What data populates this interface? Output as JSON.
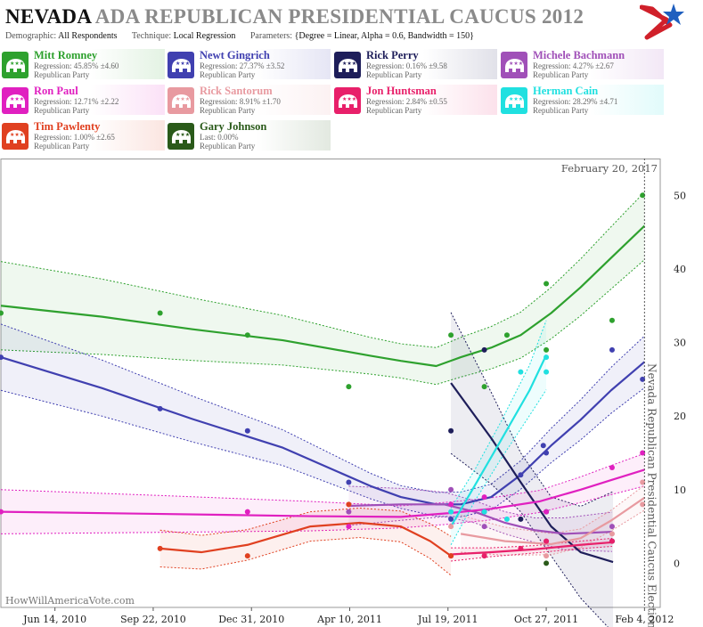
{
  "header": {
    "title_state": "NEVADA",
    "title_rest": "ADA REPUBLICAN PRESIDENTIAL CAUCUS 2012",
    "params": [
      {
        "label": "Demographic:",
        "value": "All Respondents"
      },
      {
        "label": "Technique:",
        "value": "Local Regression"
      },
      {
        "label": "Parameters:",
        "value": "{Degree = Linear, Alpha = 0.6, Bandwidth = 150}"
      }
    ],
    "logo_colors": {
      "red": "#d0202a",
      "blue": "#1f5fbf"
    }
  },
  "legend": {
    "candidates": [
      {
        "name": "Mitt Romney",
        "stat": "Regression: 45.85% ±4.60",
        "party": "Republican Party",
        "color": "#2ea12e",
        "icon": "elephant-icon"
      },
      {
        "name": "Newt Gingrich",
        "stat": "Regression: 27.37% ±3.52",
        "party": "Republican Party",
        "color": "#4040b0",
        "icon": "elephant-icon"
      },
      {
        "name": "Rick Perry",
        "stat": "Regression: 0.16% ±9.58",
        "party": "Republican Party",
        "color": "#1e1e5a",
        "icon": "elephant-icon"
      },
      {
        "name": "Michele Bachmann",
        "stat": "Regression: 4.27% ±2.67",
        "party": "Republican Party",
        "color": "#a050b8",
        "icon": "elephant-icon"
      },
      {
        "name": "Ron Paul",
        "stat": "Regression: 12.71% ±2.22",
        "party": "Republican Party",
        "color": "#e020c0",
        "icon": "elephant-icon"
      },
      {
        "name": "Rick Santorum",
        "stat": "Regression: 8.91% ±1.70",
        "party": "Republican Party",
        "color": "#e89aa0",
        "icon": "elephant-icon"
      },
      {
        "name": "Jon Huntsman",
        "stat": "Regression: 2.84% ±0.55",
        "party": "Republican Party",
        "color": "#e8206a",
        "icon": "elephant-icon"
      },
      {
        "name": "Herman Cain",
        "stat": "Regression: 28.29% ±4.71",
        "party": "Republican Party",
        "color": "#20e0e0",
        "icon": "elephant-icon"
      },
      {
        "name": "Tim Pawlenty",
        "stat": "Regression: 1.00% ±2.65",
        "party": "Republican Party",
        "color": "#e04020",
        "icon": "elephant-icon"
      },
      {
        "name": "Gary Johnson",
        "stat": "Last: 0.00%",
        "party": "Republican Party",
        "color": "#2a5a1a",
        "icon": "elephant-icon"
      }
    ]
  },
  "chart_data": {
    "type": "line",
    "x_is_date": true,
    "xlim": [
      "2010-04-20",
      "2012-02-20"
    ],
    "ylim": [
      -6,
      55
    ],
    "x_ticks": [
      {
        "date": "2010-06-14",
        "label": "Jun 14, 2010"
      },
      {
        "date": "2010-09-22",
        "label": "Sep 22, 2010"
      },
      {
        "date": "2010-12-31",
        "label": "Dec 31, 2010"
      },
      {
        "date": "2011-04-10",
        "label": "Apr 10, 2011"
      },
      {
        "date": "2011-07-19",
        "label": "Jul 19, 2011"
      },
      {
        "date": "2011-10-27",
        "label": "Oct 27, 2011"
      },
      {
        "date": "2012-02-04",
        "label": "Feb 4, 2012"
      }
    ],
    "y_ticks": [
      0,
      10,
      20,
      30,
      40,
      50
    ],
    "date_stamp": "February 20, 2017",
    "event_date": "2012-02-04",
    "event_label": "Nevada Republican Presidential Caucus Election",
    "watermark": "HowWillAmericaVote.com",
    "grid": false,
    "series": [
      {
        "name": "Mitt Romney",
        "color": "#2ea12e",
        "points": [
          [
            "2010-04-20",
            34
          ],
          [
            "2010-09-29",
            34
          ],
          [
            "2010-12-27",
            31
          ],
          [
            "2011-04-09",
            24
          ],
          [
            "2011-07-22",
            31
          ],
          [
            "2011-08-25",
            24
          ],
          [
            "2011-09-17",
            31
          ],
          [
            "2011-10-27",
            38
          ],
          [
            "2011-10-27",
            29
          ],
          [
            "2012-01-02",
            33
          ],
          [
            "2012-02-02",
            50
          ]
        ],
        "fit": [
          [
            "2010-04-20",
            35
          ],
          [
            "2010-08-01",
            33.5
          ],
          [
            "2010-11-01",
            31.8
          ],
          [
            "2011-02-01",
            30.3
          ],
          [
            "2011-05-01",
            28.2
          ],
          [
            "2011-06-01",
            27.5
          ],
          [
            "2011-07-07",
            26.8
          ],
          [
            "2011-08-01",
            28
          ],
          [
            "2011-09-01",
            29.3
          ],
          [
            "2011-10-01",
            31
          ],
          [
            "2011-11-01",
            34
          ],
          [
            "2011-12-01",
            37.5
          ],
          [
            "2012-01-01",
            41.5
          ],
          [
            "2012-02-04",
            45.85
          ]
        ],
        "band": [
          6,
          2.2,
          3,
          4.6
        ]
      },
      {
        "name": "Newt Gingrich",
        "color": "#4040b0",
        "points": [
          [
            "2010-04-20",
            28
          ],
          [
            "2010-09-29",
            21
          ],
          [
            "2010-12-27",
            18
          ],
          [
            "2011-04-09",
            11
          ],
          [
            "2011-07-22",
            6
          ],
          [
            "2011-08-25",
            7
          ],
          [
            "2011-10-01",
            12
          ],
          [
            "2011-10-27",
            15
          ],
          [
            "2011-10-24",
            16
          ],
          [
            "2012-01-02",
            29
          ],
          [
            "2012-02-02",
            25
          ]
        ],
        "fit": [
          [
            "2010-04-20",
            28
          ],
          [
            "2010-08-01",
            23.8
          ],
          [
            "2010-11-01",
            19.6
          ],
          [
            "2011-02-01",
            15.7
          ],
          [
            "2011-05-01",
            10.5
          ],
          [
            "2011-06-01",
            9
          ],
          [
            "2011-07-07",
            8
          ],
          [
            "2011-08-01",
            8
          ],
          [
            "2011-09-01",
            9
          ],
          [
            "2011-10-01",
            12
          ],
          [
            "2011-11-01",
            16
          ],
          [
            "2011-12-01",
            19.5
          ],
          [
            "2012-01-01",
            23.5
          ],
          [
            "2012-02-04",
            27.37
          ]
        ],
        "band": [
          4.5,
          1.5,
          1.8,
          3.52
        ]
      },
      {
        "name": "Rick Perry",
        "color": "#1e1e5a",
        "points": [
          [
            "2011-07-22",
            18
          ],
          [
            "2011-08-25",
            29
          ],
          [
            "2011-10-01",
            6
          ],
          [
            "2011-10-27",
            7
          ],
          [
            "2012-01-02",
            3
          ]
        ],
        "fit": [
          [
            "2011-07-22",
            24.5
          ],
          [
            "2011-09-01",
            17
          ],
          [
            "2011-10-01",
            11
          ],
          [
            "2011-11-01",
            5
          ],
          [
            "2011-12-01",
            1.5
          ],
          [
            "2012-01-03",
            0.16
          ]
        ],
        "band": [
          9.58,
          4,
          4,
          9.58
        ]
      },
      {
        "name": "Michele Bachmann",
        "color": "#a050b8",
        "points": [
          [
            "2011-04-09",
            7
          ],
          [
            "2011-07-22",
            10
          ],
          [
            "2011-08-25",
            5
          ],
          [
            "2011-10-27",
            3
          ],
          [
            "2012-01-02",
            5
          ]
        ],
        "fit": [
          [
            "2011-04-09",
            7.8
          ],
          [
            "2011-06-01",
            8
          ],
          [
            "2011-07-15",
            8
          ],
          [
            "2011-08-15",
            7
          ],
          [
            "2011-09-15",
            5.5
          ],
          [
            "2011-10-15",
            4.5
          ],
          [
            "2011-11-15",
            4
          ],
          [
            "2012-01-02",
            4.27
          ]
        ],
        "band": [
          2.67,
          1.5,
          1.5,
          2.67
        ]
      },
      {
        "name": "Ron Paul",
        "color": "#e020c0",
        "points": [
          [
            "2010-04-20",
            7
          ],
          [
            "2010-12-27",
            7
          ],
          [
            "2011-04-09",
            5
          ],
          [
            "2011-07-22",
            8
          ],
          [
            "2011-08-25",
            9
          ],
          [
            "2011-10-27",
            7
          ],
          [
            "2012-01-02",
            13
          ],
          [
            "2012-02-02",
            15
          ]
        ],
        "fit": [
          [
            "2010-04-20",
            7
          ],
          [
            "2010-10-01",
            6.7
          ],
          [
            "2011-03-01",
            6.4
          ],
          [
            "2011-06-01",
            6.3
          ],
          [
            "2011-07-19",
            6.8
          ],
          [
            "2011-09-01",
            7.4
          ],
          [
            "2011-10-20",
            8.4
          ],
          [
            "2011-12-01",
            10
          ],
          [
            "2012-01-01",
            11.3
          ],
          [
            "2012-02-04",
            12.71
          ]
        ],
        "band": [
          3,
          1.5,
          1.5,
          2.22
        ]
      },
      {
        "name": "Rick Santorum",
        "color": "#e89aa0",
        "points": [
          [
            "2011-04-09",
            8
          ],
          [
            "2011-07-22",
            5
          ],
          [
            "2011-08-25",
            1
          ],
          [
            "2011-10-27",
            1
          ],
          [
            "2012-01-02",
            4
          ],
          [
            "2012-02-02",
            11
          ],
          [
            "2012-02-02",
            8
          ]
        ],
        "fit": [
          [
            "2011-08-01",
            4
          ],
          [
            "2011-09-15",
            3
          ],
          [
            "2011-11-01",
            2.6
          ],
          [
            "2011-12-01",
            3.4
          ],
          [
            "2012-01-01",
            5.8
          ],
          [
            "2012-02-04",
            8.91
          ]
        ],
        "band": [
          2.5,
          1.5,
          1.2,
          1.7
        ]
      },
      {
        "name": "Jon Huntsman",
        "color": "#e8206a",
        "points": [
          [
            "2011-07-22",
            1
          ],
          [
            "2011-08-25",
            1
          ],
          [
            "2011-10-01",
            2
          ],
          [
            "2011-10-27",
            3
          ],
          [
            "2012-01-02",
            3
          ]
        ],
        "fit": [
          [
            "2011-07-22",
            1.2
          ],
          [
            "2011-09-01",
            1.5
          ],
          [
            "2011-10-15",
            1.9
          ],
          [
            "2011-12-01",
            2.5
          ],
          [
            "2012-01-02",
            2.84
          ]
        ],
        "band": [
          0.9,
          0.5,
          0.5,
          0.55
        ]
      },
      {
        "name": "Herman Cain",
        "color": "#20e0e0",
        "points": [
          [
            "2011-07-22",
            7
          ],
          [
            "2011-08-25",
            7
          ],
          [
            "2011-09-17",
            6
          ],
          [
            "2011-10-01",
            26
          ],
          [
            "2011-10-27",
            26
          ],
          [
            "2011-10-27",
            28
          ]
        ],
        "fit": [
          [
            "2011-07-22",
            5
          ],
          [
            "2011-08-15",
            10.5
          ],
          [
            "2011-09-10",
            16.5
          ],
          [
            "2011-10-10",
            23.5
          ],
          [
            "2011-10-27",
            28.29
          ]
        ],
        "band": [
          2.5,
          2,
          3,
          4.71
        ]
      },
      {
        "name": "Tim Pawlenty",
        "color": "#e04020",
        "points": [
          [
            "2010-09-29",
            2
          ],
          [
            "2010-12-27",
            1
          ],
          [
            "2011-04-09",
            8
          ],
          [
            "2011-07-22",
            1
          ]
        ],
        "fit": [
          [
            "2010-09-29",
            2
          ],
          [
            "2010-11-10",
            1.5
          ],
          [
            "2010-12-27",
            2.5
          ],
          [
            "2011-03-01",
            5
          ],
          [
            "2011-04-20",
            5.5
          ],
          [
            "2011-06-01",
            5
          ],
          [
            "2011-07-01",
            3
          ],
          [
            "2011-07-22",
            1
          ]
        ],
        "band": [
          2.5,
          2,
          2,
          2.65
        ]
      },
      {
        "name": "Gary Johnson",
        "color": "#2a5a1a",
        "points": [
          [
            "2011-10-27",
            0
          ]
        ],
        "fit": [],
        "band": [
          0,
          0,
          0,
          0
        ]
      }
    ]
  }
}
